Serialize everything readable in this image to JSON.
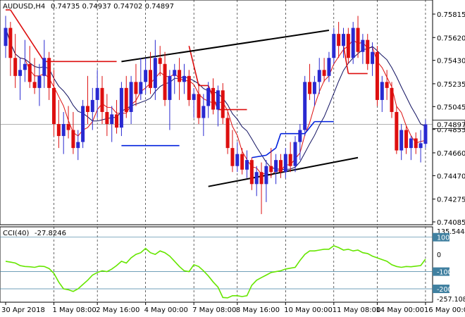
{
  "header": {
    "symbol": "AUDUSD,H4",
    "ohlc": "0.74735 0.74937 0.74702 0.74897"
  },
  "indicator_header": {
    "name": "CCI(40)",
    "value": "-27.8246"
  },
  "colors": {
    "bull_candle": "#2929d1",
    "bear_candle": "#dd0f0f",
    "cci_line": "#66e600",
    "channel_line": "#000000",
    "lower_step_line": "#0020dd",
    "upper_step_line": "#dd0f0f",
    "ma_red": "#dd0f0f",
    "ma_navy": "#101060",
    "grid": "#000000",
    "level_line": "#4080a0",
    "current_price_bg": "#ffffff"
  },
  "chart_data": [
    {
      "type": "candlestick",
      "panel": "main",
      "price_axis_ticks": [
        "0.75815",
        "0.75620",
        "0.75430",
        "0.75235",
        "0.75045",
        "0.74855",
        "0.74660",
        "0.74470",
        "0.74275",
        "0.74085"
      ],
      "ylim": [
        0.74085,
        0.75815
      ],
      "current_price": "0.74897",
      "time_axis_labels": [
        "30 Apr 2018",
        "1 May 08:00",
        "2 May 16:00",
        "4 May 00:00",
        "7 May 08:00",
        "8 May 16:00",
        "10 May 00:00",
        "11 May 08:00",
        "14 May 00:00",
        "16 May 00:00"
      ],
      "candles": [
        {
          "o": 0.7555,
          "h": 0.758,
          "l": 0.7545,
          "c": 0.757
        },
        {
          "o": 0.757,
          "h": 0.7575,
          "l": 0.753,
          "c": 0.7545
        },
        {
          "o": 0.7545,
          "h": 0.7565,
          "l": 0.752,
          "c": 0.753
        },
        {
          "o": 0.753,
          "h": 0.7545,
          "l": 0.751,
          "c": 0.7535
        },
        {
          "o": 0.7535,
          "h": 0.756,
          "l": 0.7525,
          "c": 0.754
        },
        {
          "o": 0.754,
          "h": 0.7555,
          "l": 0.752,
          "c": 0.7525
        },
        {
          "o": 0.7525,
          "h": 0.7545,
          "l": 0.7515,
          "c": 0.752
        },
        {
          "o": 0.752,
          "h": 0.754,
          "l": 0.7505,
          "c": 0.753
        },
        {
          "o": 0.753,
          "h": 0.756,
          "l": 0.752,
          "c": 0.7545
        },
        {
          "o": 0.7545,
          "h": 0.755,
          "l": 0.751,
          "c": 0.752
        },
        {
          "o": 0.752,
          "h": 0.7535,
          "l": 0.748,
          "c": 0.749
        },
        {
          "o": 0.749,
          "h": 0.751,
          "l": 0.747,
          "c": 0.748
        },
        {
          "o": 0.748,
          "h": 0.75,
          "l": 0.7465,
          "c": 0.749
        },
        {
          "o": 0.749,
          "h": 0.7505,
          "l": 0.7478,
          "c": 0.7485
        },
        {
          "o": 0.7485,
          "h": 0.75,
          "l": 0.7465,
          "c": 0.747
        },
        {
          "o": 0.747,
          "h": 0.7485,
          "l": 0.746,
          "c": 0.7475
        },
        {
          "o": 0.7475,
          "h": 0.751,
          "l": 0.747,
          "c": 0.7505
        },
        {
          "o": 0.7505,
          "h": 0.753,
          "l": 0.749,
          "c": 0.75
        },
        {
          "o": 0.75,
          "h": 0.752,
          "l": 0.7485,
          "c": 0.751
        },
        {
          "o": 0.751,
          "h": 0.7535,
          "l": 0.7495,
          "c": 0.752
        },
        {
          "o": 0.752,
          "h": 0.753,
          "l": 0.749,
          "c": 0.75
        },
        {
          "o": 0.75,
          "h": 0.7515,
          "l": 0.748,
          "c": 0.749
        },
        {
          "o": 0.749,
          "h": 0.7505,
          "l": 0.7475,
          "c": 0.7498
        },
        {
          "o": 0.7498,
          "h": 0.751,
          "l": 0.7482,
          "c": 0.7487
        },
        {
          "o": 0.7487,
          "h": 0.7525,
          "l": 0.748,
          "c": 0.752
        },
        {
          "o": 0.752,
          "h": 0.753,
          "l": 0.7495,
          "c": 0.75
        },
        {
          "o": 0.75,
          "h": 0.753,
          "l": 0.749,
          "c": 0.7525
        },
        {
          "o": 0.7525,
          "h": 0.754,
          "l": 0.7505,
          "c": 0.7515
        },
        {
          "o": 0.7515,
          "h": 0.7545,
          "l": 0.751,
          "c": 0.7525
        },
        {
          "o": 0.7525,
          "h": 0.7545,
          "l": 0.7515,
          "c": 0.7535
        },
        {
          "o": 0.7535,
          "h": 0.755,
          "l": 0.7515,
          "c": 0.752
        },
        {
          "o": 0.752,
          "h": 0.756,
          "l": 0.751,
          "c": 0.7545
        },
        {
          "o": 0.7545,
          "h": 0.7555,
          "l": 0.753,
          "c": 0.754
        },
        {
          "o": 0.754,
          "h": 0.755,
          "l": 0.7505,
          "c": 0.751
        },
        {
          "o": 0.751,
          "h": 0.7535,
          "l": 0.7485,
          "c": 0.753
        },
        {
          "o": 0.753,
          "h": 0.754,
          "l": 0.7515,
          "c": 0.7535
        },
        {
          "o": 0.7535,
          "h": 0.7545,
          "l": 0.751,
          "c": 0.7525
        },
        {
          "o": 0.7525,
          "h": 0.754,
          "l": 0.7515,
          "c": 0.753
        },
        {
          "o": 0.753,
          "h": 0.7535,
          "l": 0.7505,
          "c": 0.751
        },
        {
          "o": 0.751,
          "h": 0.752,
          "l": 0.7495,
          "c": 0.7515
        },
        {
          "o": 0.7515,
          "h": 0.7522,
          "l": 0.749,
          "c": 0.7495
        },
        {
          "o": 0.7495,
          "h": 0.7515,
          "l": 0.748,
          "c": 0.7505
        },
        {
          "o": 0.7505,
          "h": 0.7525,
          "l": 0.7495,
          "c": 0.752
        },
        {
          "o": 0.752,
          "h": 0.7528,
          "l": 0.7498,
          "c": 0.7502
        },
        {
          "o": 0.7502,
          "h": 0.7522,
          "l": 0.7488,
          "c": 0.7518
        },
        {
          "o": 0.7518,
          "h": 0.7524,
          "l": 0.749,
          "c": 0.7495
        },
        {
          "o": 0.7495,
          "h": 0.75,
          "l": 0.7465,
          "c": 0.747
        },
        {
          "o": 0.747,
          "h": 0.7485,
          "l": 0.745,
          "c": 0.7455
        },
        {
          "o": 0.7455,
          "h": 0.7475,
          "l": 0.745,
          "c": 0.7465
        },
        {
          "o": 0.7465,
          "h": 0.747,
          "l": 0.7448,
          "c": 0.7452
        },
        {
          "o": 0.7452,
          "h": 0.7468,
          "l": 0.7445,
          "c": 0.746
        },
        {
          "o": 0.746,
          "h": 0.7462,
          "l": 0.7435,
          "c": 0.744
        },
        {
          "o": 0.744,
          "h": 0.7455,
          "l": 0.743,
          "c": 0.745
        },
        {
          "o": 0.745,
          "h": 0.7458,
          "l": 0.7415,
          "c": 0.744
        },
        {
          "o": 0.744,
          "h": 0.746,
          "l": 0.7425,
          "c": 0.7455
        },
        {
          "o": 0.7455,
          "h": 0.747,
          "l": 0.7445,
          "c": 0.745
        },
        {
          "o": 0.745,
          "h": 0.7465,
          "l": 0.744,
          "c": 0.746
        },
        {
          "o": 0.746,
          "h": 0.7465,
          "l": 0.7445,
          "c": 0.745
        },
        {
          "o": 0.745,
          "h": 0.747,
          "l": 0.7445,
          "c": 0.7465
        },
        {
          "o": 0.7465,
          "h": 0.7475,
          "l": 0.745,
          "c": 0.7455
        },
        {
          "o": 0.7455,
          "h": 0.748,
          "l": 0.745,
          "c": 0.7475
        },
        {
          "o": 0.7475,
          "h": 0.749,
          "l": 0.746,
          "c": 0.7485
        },
        {
          "o": 0.7485,
          "h": 0.753,
          "l": 0.748,
          "c": 0.7525
        },
        {
          "o": 0.7525,
          "h": 0.754,
          "l": 0.751,
          "c": 0.7515
        },
        {
          "o": 0.7515,
          "h": 0.753,
          "l": 0.7505,
          "c": 0.7525
        },
        {
          "o": 0.7525,
          "h": 0.7545,
          "l": 0.7515,
          "c": 0.7535
        },
        {
          "o": 0.7535,
          "h": 0.7545,
          "l": 0.7525,
          "c": 0.753
        },
        {
          "o": 0.753,
          "h": 0.755,
          "l": 0.7525,
          "c": 0.7545
        },
        {
          "o": 0.7545,
          "h": 0.757,
          "l": 0.754,
          "c": 0.7565
        },
        {
          "o": 0.7565,
          "h": 0.7575,
          "l": 0.7545,
          "c": 0.7555
        },
        {
          "o": 0.7555,
          "h": 0.757,
          "l": 0.7545,
          "c": 0.7565
        },
        {
          "o": 0.7565,
          "h": 0.757,
          "l": 0.754,
          "c": 0.7545
        },
        {
          "o": 0.7545,
          "h": 0.7575,
          "l": 0.754,
          "c": 0.757
        },
        {
          "o": 0.757,
          "h": 0.758,
          "l": 0.7545,
          "c": 0.755
        },
        {
          "o": 0.755,
          "h": 0.7565,
          "l": 0.754,
          "c": 0.756
        },
        {
          "o": 0.756,
          "h": 0.7565,
          "l": 0.7535,
          "c": 0.754
        },
        {
          "o": 0.754,
          "h": 0.7558,
          "l": 0.753,
          "c": 0.755
        },
        {
          "o": 0.755,
          "h": 0.7555,
          "l": 0.7505,
          "c": 0.751
        },
        {
          "o": 0.751,
          "h": 0.753,
          "l": 0.75,
          "c": 0.7525
        },
        {
          "o": 0.7525,
          "h": 0.7535,
          "l": 0.751,
          "c": 0.752
        },
        {
          "o": 0.752,
          "h": 0.7525,
          "l": 0.7495,
          "c": 0.75
        },
        {
          "o": 0.75,
          "h": 0.7505,
          "l": 0.7465,
          "c": 0.7468
        },
        {
          "o": 0.7468,
          "h": 0.749,
          "l": 0.746,
          "c": 0.7485
        },
        {
          "o": 0.7485,
          "h": 0.7488,
          "l": 0.7465,
          "c": 0.747
        },
        {
          "o": 0.747,
          "h": 0.748,
          "l": 0.746,
          "c": 0.7478
        },
        {
          "o": 0.7478,
          "h": 0.7483,
          "l": 0.7465,
          "c": 0.747
        },
        {
          "o": 0.747,
          "h": 0.7485,
          "l": 0.7458,
          "c": 0.7474
        },
        {
          "o": 0.74735,
          "h": 0.74937,
          "l": 0.74702,
          "c": 0.74897
        }
      ],
      "red_step_segments": [
        {
          "i0": 0,
          "i1": 1,
          "v0": 0.7585,
          "v1": 0.7585
        },
        {
          "i0": 1,
          "i1": 8,
          "v0": 0.7585,
          "v1": 0.7542
        },
        {
          "i0": 8,
          "i1": 23,
          "v0": 0.7542,
          "v1": 0.7542
        },
        {
          "i0": 38,
          "i1": 40,
          "v0": 0.7555,
          "v1": 0.7522
        },
        {
          "i0": 40,
          "i1": 42,
          "v0": 0.7522,
          "v1": 0.7522
        },
        {
          "i0": 42,
          "i1": 44,
          "v0": 0.7522,
          "v1": 0.7502
        },
        {
          "i0": 44,
          "i1": 50,
          "v0": 0.7502,
          "v1": 0.7502
        },
        {
          "i0": 70,
          "i1": 71,
          "v0": 0.7555,
          "v1": 0.7532
        },
        {
          "i0": 71,
          "i1": 75,
          "v0": 0.7532,
          "v1": 0.7532
        }
      ],
      "blue_step_segments": [
        {
          "i0": 24,
          "i1": 36,
          "v0": 0.7472,
          "v1": 0.7472
        },
        {
          "i0": 51,
          "i1": 54,
          "v0": 0.7462,
          "v1": 0.7464
        },
        {
          "i0": 54,
          "i1": 56,
          "v0": 0.7464,
          "v1": 0.747
        },
        {
          "i0": 56,
          "i1": 57,
          "v0": 0.747,
          "v1": 0.7482
        },
        {
          "i0": 57,
          "i1": 62,
          "v0": 0.7482,
          "v1": 0.7482
        },
        {
          "i0": 62,
          "i1": 64,
          "v0": 0.7482,
          "v1": 0.7492
        },
        {
          "i0": 64,
          "i1": 68,
          "v0": 0.7492,
          "v1": 0.7492
        }
      ],
      "channel_lines": [
        {
          "i0": 24,
          "v0": 0.7542,
          "i1": 67,
          "v1": 0.7568
        },
        {
          "i0": 42,
          "v0": 0.7438,
          "i1": 73,
          "v1": 0.7462
        }
      ]
    },
    {
      "type": "line",
      "panel": "indicator",
      "title": "CCI(40) -27.8246",
      "ylim": [
        -257.1088,
        135.5444
      ],
      "level_labels": [
        "135.5444",
        "100",
        "0",
        "-100",
        "-200",
        "-257.1088"
      ],
      "levels": [
        100,
        -100,
        -200
      ],
      "values": [
        -40,
        -45,
        -50,
        -65,
        -70,
        -72,
        -75,
        -68,
        -70,
        -82,
        -110,
        -160,
        -200,
        -205,
        -215,
        -200,
        -175,
        -150,
        -120,
        -105,
        -95,
        -100,
        -85,
        -65,
        -40,
        -50,
        -20,
        0,
        10,
        35,
        10,
        0,
        20,
        10,
        -10,
        -40,
        -70,
        -95,
        -100,
        -60,
        -70,
        -95,
        -125,
        -160,
        -190,
        -250,
        -252,
        -240,
        -240,
        -245,
        -240,
        -180,
        -150,
        -135,
        -120,
        -105,
        -100,
        -95,
        -85,
        -80,
        -75,
        -35,
        0,
        20,
        20,
        25,
        30,
        30,
        50,
        40,
        25,
        30,
        20,
        25,
        10,
        5,
        -10,
        -20,
        -30,
        -40,
        -60,
        -70,
        -75,
        -70,
        -72,
        -68,
        -65,
        -27.82
      ]
    }
  ]
}
